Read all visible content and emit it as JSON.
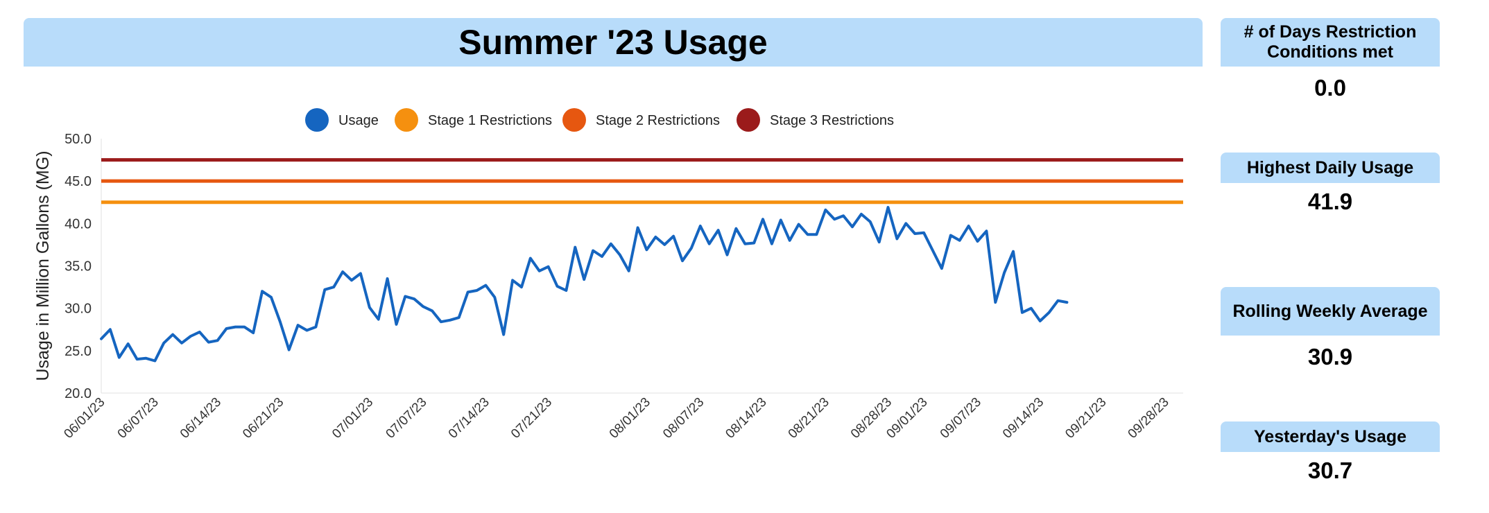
{
  "title": "Summer '23 Usage",
  "kpis": [
    {
      "label": "# of Days Restriction Conditions met",
      "value": "0.0"
    },
    {
      "label": "Highest Daily Usage",
      "value": "41.9"
    },
    {
      "label": "Rolling Weekly Average",
      "value": "30.9"
    },
    {
      "label": "Yesterday's Usage",
      "value": "30.7"
    }
  ],
  "chart_data": {
    "type": "line",
    "ylabel": "Usage in Million Gallons (MG)",
    "ylim": [
      20,
      50
    ],
    "yticks": [
      "20.0",
      "25.0",
      "30.0",
      "35.0",
      "40.0",
      "45.0",
      "50.0"
    ],
    "xlim": [
      "2023-06-01",
      "2023-09-30"
    ],
    "xticks": [
      "06/01/23",
      "06/07/23",
      "06/14/23",
      "06/21/23",
      "07/01/23",
      "07/07/23",
      "07/14/23",
      "07/21/23",
      "08/01/23",
      "08/07/23",
      "08/14/23",
      "08/21/23",
      "08/28/23",
      "09/01/23",
      "09/07/23",
      "09/14/23",
      "09/21/23",
      "09/28/23"
    ],
    "xtick_dates": [
      "2023-06-01",
      "2023-06-07",
      "2023-06-14",
      "2023-06-21",
      "2023-07-01",
      "2023-07-07",
      "2023-07-14",
      "2023-07-21",
      "2023-08-01",
      "2023-08-07",
      "2023-08-14",
      "2023-08-21",
      "2023-08-28",
      "2023-09-01",
      "2023-09-07",
      "2023-09-14",
      "2023-09-21",
      "2023-09-28"
    ],
    "legend": "top",
    "grid": false,
    "series": [
      {
        "name": "Usage",
        "color": "#1565c0",
        "x": [
          "2023-06-01",
          "2023-06-02",
          "2023-06-03",
          "2023-06-04",
          "2023-06-05",
          "2023-06-06",
          "2023-06-07",
          "2023-06-08",
          "2023-06-09",
          "2023-06-10",
          "2023-06-11",
          "2023-06-12",
          "2023-06-13",
          "2023-06-14",
          "2023-06-15",
          "2023-06-16",
          "2023-06-17",
          "2023-06-18",
          "2023-06-19",
          "2023-06-20",
          "2023-06-21",
          "2023-06-22",
          "2023-06-23",
          "2023-06-24",
          "2023-06-25",
          "2023-06-26",
          "2023-06-27",
          "2023-06-28",
          "2023-06-29",
          "2023-06-30",
          "2023-07-01",
          "2023-07-02",
          "2023-07-03",
          "2023-07-04",
          "2023-07-05",
          "2023-07-06",
          "2023-07-07",
          "2023-07-08",
          "2023-07-09",
          "2023-07-10",
          "2023-07-11",
          "2023-07-12",
          "2023-07-13",
          "2023-07-14",
          "2023-07-15",
          "2023-07-16",
          "2023-07-17",
          "2023-07-18",
          "2023-07-19",
          "2023-07-20",
          "2023-07-21",
          "2023-07-22",
          "2023-07-23",
          "2023-07-24",
          "2023-07-25",
          "2023-07-26",
          "2023-07-27",
          "2023-07-28",
          "2023-07-29",
          "2023-07-30",
          "2023-07-31",
          "2023-08-01",
          "2023-08-02",
          "2023-08-03",
          "2023-08-04",
          "2023-08-05",
          "2023-08-06",
          "2023-08-07",
          "2023-08-08",
          "2023-08-09",
          "2023-08-10",
          "2023-08-11",
          "2023-08-12",
          "2023-08-13",
          "2023-08-14",
          "2023-08-15",
          "2023-08-16",
          "2023-08-17",
          "2023-08-18",
          "2023-08-19",
          "2023-08-20",
          "2023-08-21",
          "2023-08-22",
          "2023-08-23",
          "2023-08-24",
          "2023-08-25",
          "2023-08-26",
          "2023-08-27",
          "2023-08-28",
          "2023-08-29",
          "2023-08-30",
          "2023-08-31",
          "2023-09-01",
          "2023-09-02",
          "2023-09-03",
          "2023-09-04",
          "2023-09-05",
          "2023-09-06",
          "2023-09-07",
          "2023-09-08",
          "2023-09-09",
          "2023-09-10",
          "2023-09-11",
          "2023-09-12",
          "2023-09-13",
          "2023-09-14",
          "2023-09-15",
          "2023-09-16",
          "2023-09-17"
        ],
        "values": [
          26.4,
          27.5,
          24.2,
          25.8,
          24.0,
          24.1,
          23.8,
          25.9,
          26.9,
          25.9,
          26.7,
          27.2,
          26.0,
          26.2,
          27.6,
          27.8,
          27.8,
          27.1,
          32.0,
          31.3,
          28.4,
          25.1,
          28.0,
          27.4,
          27.8,
          32.2,
          32.5,
          34.3,
          33.3,
          34.1,
          30.1,
          28.7,
          33.5,
          28.1,
          31.4,
          31.1,
          30.2,
          29.7,
          28.4,
          28.6,
          28.9,
          31.9,
          32.1,
          32.7,
          31.3,
          26.9,
          33.3,
          32.5,
          35.9,
          34.4,
          34.9,
          32.6,
          32.1,
          37.2,
          33.4,
          36.8,
          36.1,
          37.6,
          36.3,
          34.4,
          39.5,
          36.9,
          38.4,
          37.5,
          38.5,
          35.6,
          37.1,
          39.7,
          37.6,
          39.2,
          36.3,
          39.4,
          37.6,
          37.7,
          40.5,
          37.6,
          40.4,
          38.0,
          39.9,
          38.7,
          38.7,
          41.6,
          40.5,
          40.9,
          39.6,
          41.1,
          40.2,
          37.8,
          41.9,
          38.2,
          40.0,
          38.8,
          38.9,
          36.8,
          34.7,
          38.6,
          38.0,
          39.7,
          37.9,
          39.1,
          30.7,
          34.2,
          36.7,
          29.5,
          30.0,
          28.5,
          29.5,
          30.9,
          30.7
        ]
      }
    ],
    "thresholds": [
      {
        "name": "Stage 1 Restrictions",
        "value": 42.5,
        "color": "#f5900f"
      },
      {
        "name": "Stage 2 Restrictions",
        "value": 45.0,
        "color": "#e65710"
      },
      {
        "name": "Stage 3 Restrictions",
        "value": 47.5,
        "color": "#9b1b1b"
      }
    ]
  }
}
